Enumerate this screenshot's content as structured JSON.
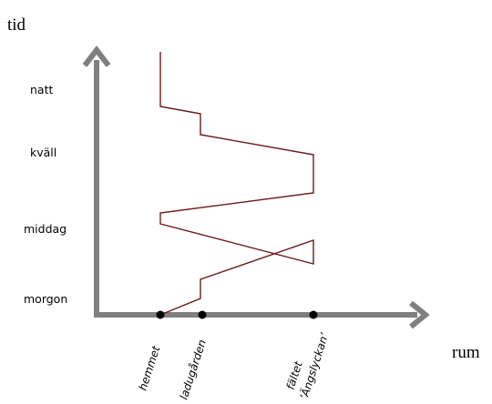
{
  "axis_labels": {
    "y": "tid",
    "x": "rum"
  },
  "time_labels": [
    "natt",
    "kväll",
    "middag",
    "morgon"
  ],
  "places": {
    "hemmet": "hemmet",
    "ladugarden": "ladugården",
    "faltet_line1": "fältet",
    "faltet_line2": "’Ängslyckan’"
  },
  "colors": {
    "axis": "#7f7f7f",
    "path": "#6b1a1a",
    "point": "#000000"
  }
}
